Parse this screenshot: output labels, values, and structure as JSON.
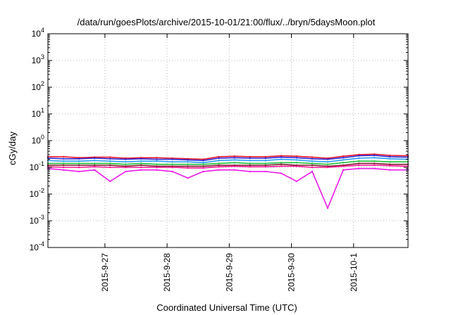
{
  "chart_data": {
    "type": "line",
    "title": "/data/run/goesPlots/archive/2015-10-01/21:00/flux/../bryn/5daysMoon.plot",
    "xlabel": "Coordinated Universal Time (UTC)",
    "ylabel": "cGy/day",
    "yscale": "log",
    "ylim": [
      0.0001,
      10000
    ],
    "xlim": [
      "2015-09-26 02:00",
      "2015-10-01 21:00"
    ],
    "grid": true,
    "legend": "none",
    "y_ticks": [
      {
        "base": "10",
        "exp": "-4",
        "value": 0.0001
      },
      {
        "base": "10",
        "exp": "-3",
        "value": 0.001
      },
      {
        "base": "10",
        "exp": "-2",
        "value": 0.01
      },
      {
        "base": "10",
        "exp": "-1",
        "value": 0.1
      },
      {
        "base": "10",
        "exp": "0",
        "value": 1
      },
      {
        "base": "10",
        "exp": "1",
        "value": 10
      },
      {
        "base": "10",
        "exp": "2",
        "value": 100
      },
      {
        "base": "10",
        "exp": "3",
        "value": 1000
      },
      {
        "base": "10",
        "exp": "4",
        "value": 10000
      }
    ],
    "x_ticks": [
      {
        "label": "2015-9-27",
        "value": "2015-09-27 00:00"
      },
      {
        "label": "2015-9-28",
        "value": "2015-09-28 00:00"
      },
      {
        "label": "2015-9-29",
        "value": "2015-09-29 00:00"
      },
      {
        "label": "2015-9-30",
        "value": "2015-09-30 00:00"
      },
      {
        "label": "2015-10-1",
        "value": "2015-10-01 00:00"
      }
    ],
    "x": [
      "2015-09-26 02:00",
      "2015-09-26 08:00",
      "2015-09-26 14:00",
      "2015-09-26 20:00",
      "2015-09-27 02:00",
      "2015-09-27 08:00",
      "2015-09-27 14:00",
      "2015-09-27 20:00",
      "2015-09-28 02:00",
      "2015-09-28 08:00",
      "2015-09-28 14:00",
      "2015-09-28 20:00",
      "2015-09-29 02:00",
      "2015-09-29 08:00",
      "2015-09-29 14:00",
      "2015-09-29 20:00",
      "2015-09-30 02:00",
      "2015-09-30 08:00",
      "2015-09-30 14:00",
      "2015-09-30 20:00",
      "2015-10-01 02:00",
      "2015-10-01 08:00",
      "2015-10-01 14:00",
      "2015-10-01 21:00"
    ],
    "series": [
      {
        "color": "#e8152b",
        "values": [
          0.25,
          0.25,
          0.23,
          0.24,
          0.24,
          0.22,
          0.23,
          0.23,
          0.22,
          0.21,
          0.2,
          0.25,
          0.26,
          0.25,
          0.25,
          0.27,
          0.26,
          0.24,
          0.22,
          0.26,
          0.3,
          0.31,
          0.28,
          0.27
        ]
      },
      {
        "color": "#2b2bd9",
        "values": [
          0.22,
          0.21,
          0.21,
          0.22,
          0.21,
          0.2,
          0.21,
          0.2,
          0.2,
          0.19,
          0.18,
          0.22,
          0.23,
          0.22,
          0.22,
          0.24,
          0.23,
          0.21,
          0.2,
          0.23,
          0.27,
          0.28,
          0.25,
          0.24
        ]
      },
      {
        "color": "#2b9bff",
        "values": [
          0.18,
          0.17,
          0.17,
          0.18,
          0.17,
          0.16,
          0.17,
          0.17,
          0.16,
          0.16,
          0.15,
          0.18,
          0.19,
          0.18,
          0.18,
          0.2,
          0.19,
          0.17,
          0.16,
          0.19,
          0.22,
          0.23,
          0.21,
          0.2
        ]
      },
      {
        "color": "#1fbf3a",
        "values": [
          0.14,
          0.14,
          0.14,
          0.14,
          0.14,
          0.13,
          0.14,
          0.13,
          0.13,
          0.13,
          0.13,
          0.14,
          0.15,
          0.14,
          0.14,
          0.15,
          0.15,
          0.14,
          0.13,
          0.15,
          0.17,
          0.17,
          0.16,
          0.16
        ]
      },
      {
        "color": "#7a1a2a",
        "values": [
          0.12,
          0.12,
          0.12,
          0.12,
          0.12,
          0.11,
          0.12,
          0.11,
          0.11,
          0.11,
          0.11,
          0.12,
          0.12,
          0.12,
          0.12,
          0.13,
          0.12,
          0.12,
          0.11,
          0.12,
          0.14,
          0.14,
          0.13,
          0.13
        ]
      },
      {
        "color": "#ff1493",
        "values": [
          0.105,
          0.1,
          0.1,
          0.105,
          0.1,
          0.1,
          0.1,
          0.1,
          0.1,
          0.095,
          0.095,
          0.105,
          0.11,
          0.105,
          0.105,
          0.11,
          0.11,
          0.1,
          0.1,
          0.11,
          0.12,
          0.12,
          0.115,
          0.11
        ]
      },
      {
        "color": "#e81ce8",
        "values": [
          0.09,
          0.08,
          0.07,
          0.08,
          0.03,
          0.07,
          0.08,
          0.08,
          0.07,
          0.04,
          0.07,
          0.08,
          0.08,
          0.07,
          0.07,
          0.06,
          0.03,
          0.07,
          0.003,
          0.08,
          0.09,
          0.09,
          0.08,
          0.08
        ]
      }
    ]
  }
}
